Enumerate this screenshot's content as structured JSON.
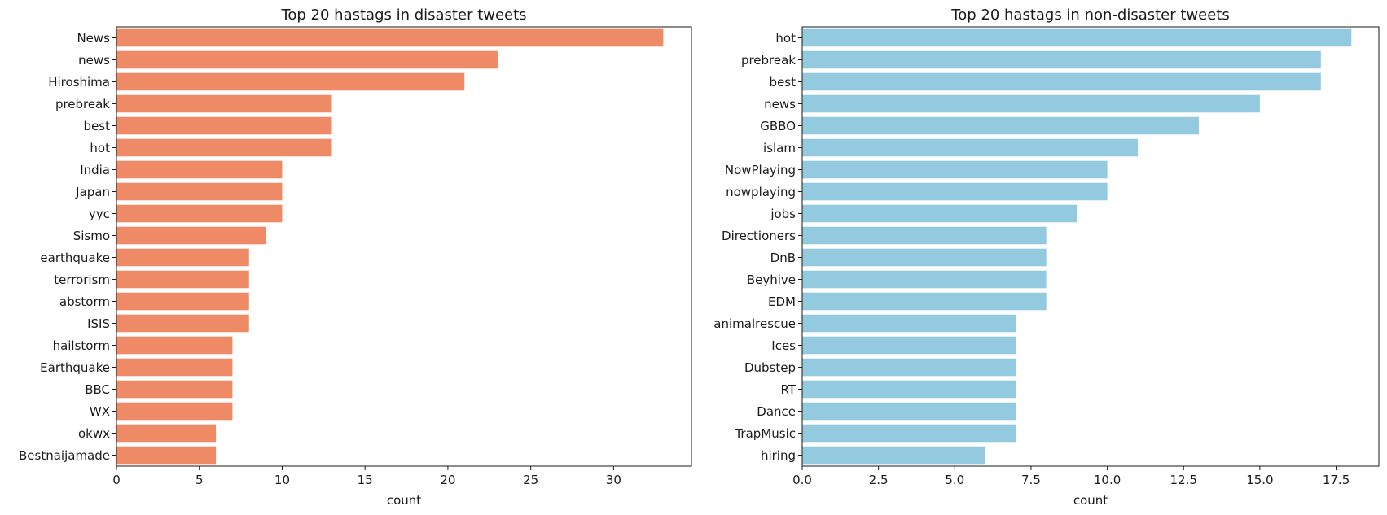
{
  "chart_data": [
    {
      "type": "bar",
      "orientation": "horizontal",
      "title": "Top 20 hastags in disaster tweets",
      "xlabel": "count",
      "ylabel": "",
      "color": "#ee8b66",
      "xlim": [
        0,
        34.7
      ],
      "xticks": [
        "0",
        "5",
        "10",
        "15",
        "20",
        "25",
        "30"
      ],
      "xtick_values": [
        0,
        5,
        10,
        15,
        20,
        25,
        30
      ],
      "categories": [
        "News",
        "news",
        "Hiroshima",
        "prebreak",
        "best",
        "hot",
        "India",
        "Japan",
        "yyc",
        "Sismo",
        "earthquake",
        "terrorism",
        "abstorm",
        "ISIS",
        "hailstorm",
        "Earthquake",
        "BBC",
        "WX",
        "okwx",
        "Bestnaijamade"
      ],
      "values": [
        33,
        23,
        21,
        13,
        13,
        13,
        10,
        10,
        10,
        9,
        8,
        8,
        8,
        8,
        7,
        7,
        7,
        7,
        6,
        6
      ],
      "grid": false
    },
    {
      "type": "bar",
      "orientation": "horizontal",
      "title": "Top 20 hastags in non-disaster tweets",
      "xlabel": "count",
      "ylabel": "",
      "color": "#94cae0",
      "xlim": [
        0,
        18.9
      ],
      "xticks": [
        "0.0",
        "2.5",
        "5.0",
        "7.5",
        "10.0",
        "12.5",
        "15.0",
        "17.5"
      ],
      "xtick_values": [
        0,
        2.5,
        5,
        7.5,
        10,
        12.5,
        15,
        17.5
      ],
      "categories": [
        "hot",
        "prebreak",
        "best",
        "news",
        "GBBO",
        "islam",
        "NowPlaying",
        "nowplaying",
        "jobs",
        "Directioners",
        "DnB",
        "Beyhive",
        "EDM",
        "animalrescue",
        "Ices",
        "Dubstep",
        "RT",
        "Dance",
        "TrapMusic",
        "hiring"
      ],
      "values": [
        18,
        17,
        17,
        15,
        13,
        11,
        10,
        10,
        9,
        8,
        8,
        8,
        8,
        7,
        7,
        7,
        7,
        7,
        7,
        6
      ],
      "grid": false
    }
  ]
}
